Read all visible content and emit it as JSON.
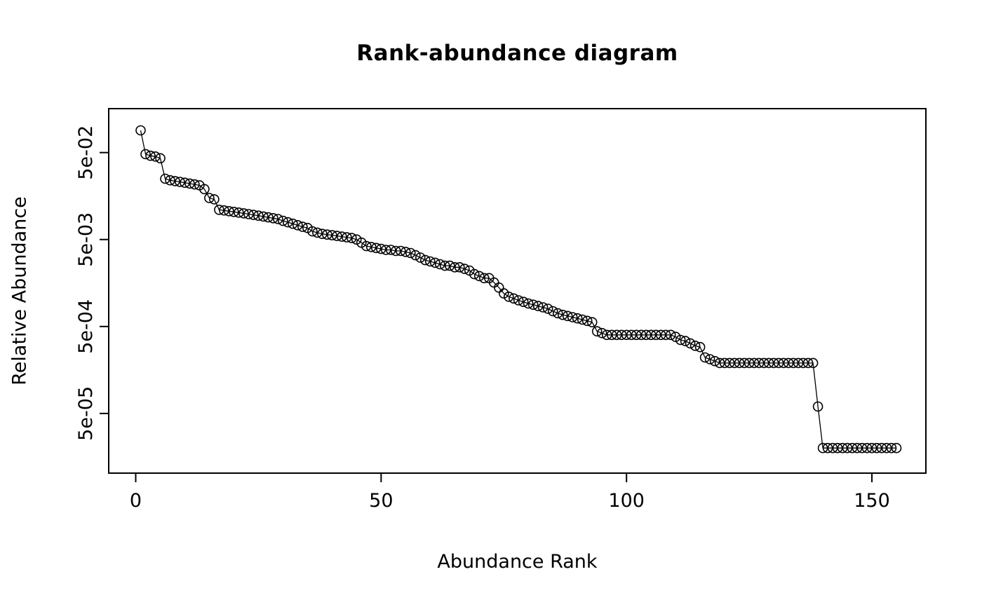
{
  "figure": {
    "background": "#ffffff",
    "foreground": "#000000"
  },
  "chart_data": {
    "type": "line",
    "title": "Rank-abundance diagram",
    "xlabel": "Abundance Rank",
    "ylabel": "Relative Abundance",
    "y_scale": "log",
    "marker": "open-circle",
    "grid": false,
    "legend": "none",
    "xlim": [
      -5.5,
      161
    ],
    "ylim": [
      1.03e-05,
      0.16
    ],
    "x_ticks": [
      0,
      50,
      100,
      150
    ],
    "x_tick_labels": [
      "0",
      "50",
      "100",
      "150"
    ],
    "y_ticks": [
      0.05,
      0.005,
      0.0005,
      5e-05
    ],
    "y_tick_labels": [
      "5e-02",
      "5e-03",
      "5e-04",
      "5e-05"
    ],
    "x_description": "Abundance rank 1..155 (one point per species)",
    "values": [
      0.09,
      0.048,
      0.046,
      0.045,
      0.043,
      0.025,
      0.024,
      0.0235,
      0.023,
      0.0225,
      0.022,
      0.0215,
      0.021,
      0.019,
      0.015,
      0.0145,
      0.011,
      0.0108,
      0.0106,
      0.0104,
      0.0102,
      0.01,
      0.0098,
      0.0096,
      0.0094,
      0.0092,
      0.009,
      0.0088,
      0.0086,
      0.0082,
      0.0079,
      0.0076,
      0.0073,
      0.007,
      0.0068,
      0.0062,
      0.006,
      0.0058,
      0.0057,
      0.0056,
      0.0055,
      0.0054,
      0.0053,
      0.0052,
      0.005,
      0.0046,
      0.0042,
      0.0041,
      0.004,
      0.0039,
      0.0038,
      0.0038,
      0.0037,
      0.0037,
      0.0036,
      0.0035,
      0.0033,
      0.0031,
      0.0029,
      0.0028,
      0.0027,
      0.0026,
      0.0025,
      0.0025,
      0.0024,
      0.0024,
      0.0023,
      0.0022,
      0.002,
      0.0019,
      0.0018,
      0.0018,
      0.0016,
      0.0014,
      0.0012,
      0.0011,
      0.00105,
      0.001,
      0.00096,
      0.00092,
      0.00089,
      0.00086,
      0.00083,
      0.0008,
      0.00075,
      0.00071,
      0.00068,
      0.00066,
      0.00064,
      0.00062,
      0.0006,
      0.00058,
      0.00056,
      0.00044,
      0.00042,
      0.0004,
      0.0004,
      0.0004,
      0.0004,
      0.0004,
      0.0004,
      0.0004,
      0.0004,
      0.0004,
      0.0004,
      0.0004,
      0.0004,
      0.0004,
      0.0004,
      0.00038,
      0.00035,
      0.00034,
      0.00032,
      0.0003,
      0.00029,
      0.00022,
      0.00021,
      0.0002,
      0.00019,
      0.00019,
      0.00019,
      0.00019,
      0.00019,
      0.00019,
      0.00019,
      0.00019,
      0.00019,
      0.00019,
      0.00019,
      0.00019,
      0.00019,
      0.00019,
      0.00019,
      0.00019,
      0.00019,
      0.00019,
      0.00019,
      0.00019,
      6e-05,
      2e-05,
      2e-05,
      2e-05,
      2e-05,
      2e-05,
      2e-05,
      2e-05,
      2e-05,
      2e-05,
      2e-05,
      2e-05,
      2e-05,
      2e-05,
      2e-05,
      2e-05,
      2e-05
    ]
  }
}
